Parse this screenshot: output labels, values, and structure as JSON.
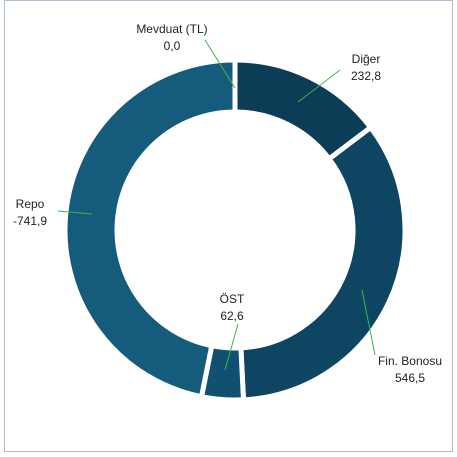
{
  "chart_data": {
    "type": "donut",
    "categories": [
      "Mevduat (TL)",
      "Diğer",
      "Fin. Bonosu",
      "ÖST",
      "Repo"
    ],
    "values": [
      0.0,
      232.8,
      546.5,
      62.6,
      -741.9
    ],
    "value_labels": [
      "0,0",
      "232,8",
      "546,5",
      "62,6",
      "-741,9"
    ],
    "colors": [
      "#0d3d56",
      "#0d3d56",
      "#0e4563",
      "#115070",
      "#145b7c"
    ]
  }
}
